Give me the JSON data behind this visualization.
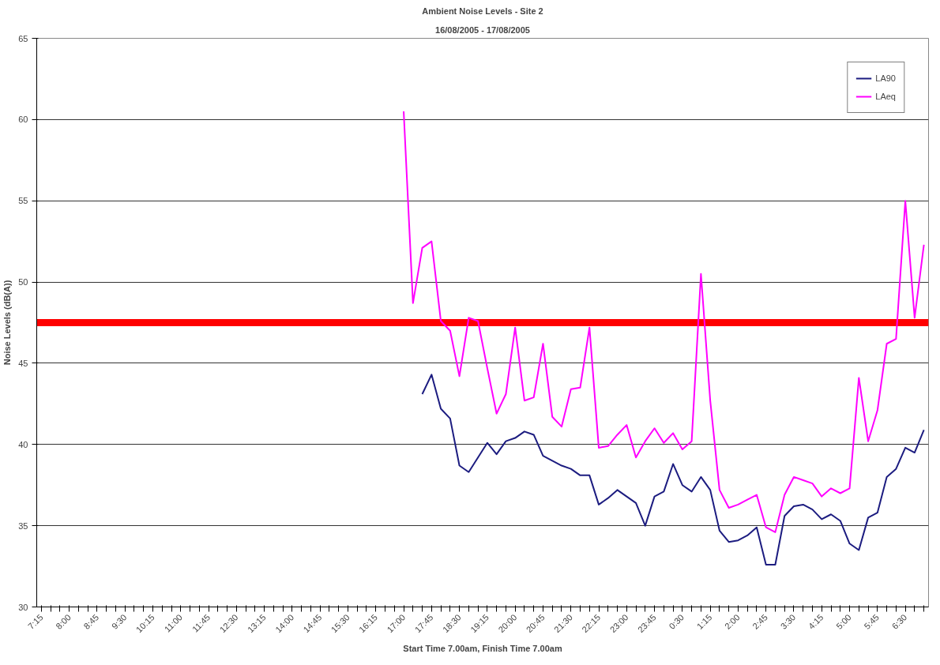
{
  "chart_data": {
    "type": "line",
    "title": "Ambient Noise Levels - Site 2",
    "subtitle": "16/08/2005 - 17/08/2005",
    "xlabel": "Start Time 7.00am, Finish Time 7.00am",
    "ylabel": "Noise Levels (dB(A))",
    "categories": [
      "7:15",
      null,
      null,
      "8:00",
      null,
      null,
      "8:45",
      null,
      null,
      "9:30",
      null,
      null,
      "10:15",
      null,
      null,
      "11:00",
      null,
      null,
      "11:45",
      null,
      null,
      "12:30",
      null,
      null,
      "13:15",
      null,
      null,
      "14:00",
      null,
      null,
      "14:45",
      null,
      null,
      "15:30",
      null,
      null,
      "16:15",
      null,
      null,
      "17:00",
      null,
      null,
      "17:45",
      null,
      null,
      "18:30",
      null,
      null,
      "19:15",
      null,
      null,
      "20:00",
      null,
      null,
      "20:45",
      null,
      null,
      "21:30",
      null,
      null,
      "22:15",
      null,
      null,
      "23:00",
      null,
      null,
      "23:45",
      null,
      null,
      "0:30",
      null,
      null,
      "1:15",
      null,
      null,
      "2:00",
      null,
      null,
      "2:45",
      null,
      null,
      "3:30",
      null,
      null,
      "4:15",
      null,
      null,
      "5:00",
      null,
      null,
      "5:45",
      null,
      null,
      "6:30",
      null,
      null
    ],
    "series": [
      {
        "name": "LA90",
        "color": "#1c1c80",
        "values": [
          null,
          null,
          null,
          null,
          null,
          null,
          null,
          null,
          null,
          null,
          null,
          null,
          null,
          null,
          null,
          null,
          null,
          null,
          null,
          null,
          null,
          null,
          null,
          null,
          null,
          null,
          null,
          null,
          null,
          null,
          null,
          null,
          null,
          null,
          null,
          null,
          null,
          null,
          null,
          null,
          null,
          43.1,
          44.3,
          42.2,
          41.6,
          38.7,
          38.3,
          39.2,
          40.1,
          39.4,
          40.2,
          40.4,
          40.8,
          40.6,
          39.3,
          39.0,
          38.7,
          38.5,
          38.1,
          38.1,
          36.3,
          36.7,
          37.2,
          36.8,
          36.4,
          35.0,
          36.8,
          37.1,
          38.8,
          37.5,
          37.1,
          38.0,
          37.2,
          34.7,
          34.0,
          34.1,
          34.4,
          34.9,
          32.6,
          32.6,
          35.6,
          36.2,
          36.3,
          36.0,
          35.4,
          35.7,
          35.3,
          33.9,
          33.5,
          35.5,
          35.8,
          38.0,
          38.5,
          39.8,
          39.5,
          40.9
        ]
      },
      {
        "name": "LAeq",
        "color": "#ff00ff",
        "values": [
          null,
          null,
          null,
          null,
          null,
          null,
          null,
          null,
          null,
          null,
          null,
          null,
          null,
          null,
          null,
          null,
          null,
          null,
          null,
          null,
          null,
          null,
          null,
          null,
          null,
          null,
          null,
          null,
          null,
          null,
          null,
          null,
          null,
          null,
          null,
          null,
          null,
          null,
          null,
          60.5,
          48.7,
          52.1,
          52.5,
          47.6,
          47.0,
          44.2,
          47.8,
          47.6,
          44.7,
          41.9,
          43.1,
          47.2,
          42.7,
          42.9,
          46.2,
          41.7,
          41.1,
          43.4,
          43.5,
          47.2,
          39.8,
          39.9,
          40.6,
          41.2,
          39.2,
          40.2,
          41.0,
          40.1,
          40.7,
          39.7,
          40.2,
          50.5,
          42.7,
          37.2,
          36.1,
          36.3,
          36.6,
          36.9,
          34.9,
          34.6,
          36.9,
          38.0,
          37.8,
          37.6,
          36.8,
          37.3,
          37.0,
          37.3,
          44.1,
          40.2,
          42.1,
          46.2,
          46.5,
          55.0,
          47.8,
          52.3
        ]
      }
    ],
    "ylim": [
      30,
      65
    ],
    "yticks": [
      30,
      35,
      40,
      45,
      50,
      55,
      60,
      65
    ],
    "grid": "y",
    "legend": "top right",
    "marker": "none",
    "line_style": "solid",
    "ref_lines": [
      {
        "axis": "y",
        "value": 47.5,
        "color": "#ff0000"
      }
    ]
  }
}
